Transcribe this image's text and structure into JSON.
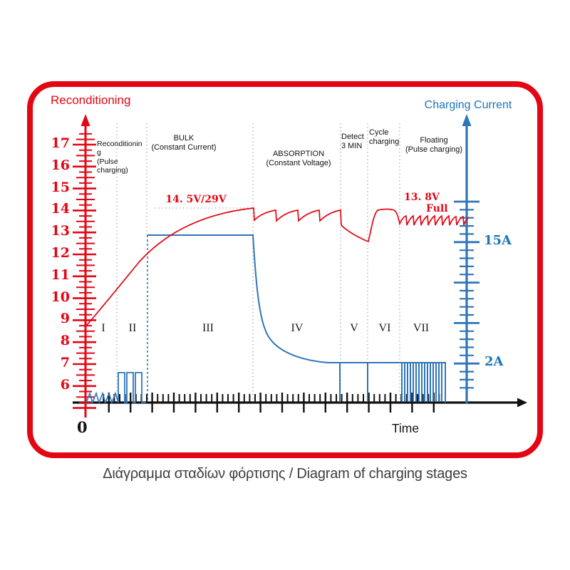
{
  "header": {
    "left_axis_title": "Reconditioning",
    "right_axis_title": "Charging Current"
  },
  "voltage_axis": {
    "ticks": [
      "17",
      "16",
      "15",
      "14",
      "13",
      "12",
      "11",
      "10",
      "9",
      "8",
      "7",
      "6"
    ]
  },
  "current_axis": {
    "high_label": "15A",
    "low_label": "2A"
  },
  "x_axis": {
    "origin": "0",
    "label": "Time"
  },
  "stage_numerals": [
    "I",
    "II",
    "III",
    "IV",
    "V",
    "VI",
    "VII"
  ],
  "stage_labels": {
    "reconditioning": "Reconditionin\ng\n(Pulse\ncharging)",
    "bulk": "BULK\n(Constant Current)",
    "absorption": "ABSORPTION\n(Constant Voltage)",
    "detect": "Detect\n3 MIN",
    "cycle": "Cycle\ncharging",
    "floating": "Floating\n(Pulse charging)"
  },
  "annotations": {
    "bulk_voltage": "14. 5V/29V",
    "float_voltage": "13. 8V",
    "full_label": "Full"
  },
  "caption": "Διάγραμμα σταδίων φόρτισης / Diagram of charging stages",
  "colors": {
    "red": "#e30613",
    "blue": "#2e75b9",
    "gray_dotted": "#bdbdbd",
    "text_dark": "#1a1a1a"
  },
  "chart_data": {
    "type": "line",
    "title": "Diagram of charging stages",
    "xlabel": "Time",
    "legend_position": "none",
    "grid": false,
    "voltage_axis_ticks": [
      17,
      16,
      15,
      14,
      13,
      12,
      11,
      10,
      9,
      8,
      7,
      6
    ],
    "current_axis_labels": [
      "15A",
      "2A"
    ],
    "stages": [
      {
        "numeral": "I",
        "name": "Reconditioning (Pulse charging)",
        "voltage": "rising from ~8.8V",
        "current": "small sawtooth pulses near 0"
      },
      {
        "numeral": "II",
        "name": "Reconditioning (Pulse charging)",
        "voltage": "rising",
        "current": "square pulses ~2A"
      },
      {
        "numeral": "III",
        "name": "BULK (Constant Current)",
        "voltage": "rises to 14.5V/29V",
        "current": "constant 15A"
      },
      {
        "numeral": "IV",
        "name": "ABSORPTION (Constant Voltage)",
        "voltage": "held ~14V with ripple",
        "current": "decays from 15A to 2A"
      },
      {
        "numeral": "V",
        "name": "Detect 3 MIN",
        "voltage": "dips to ~12.5V",
        "current": "2A"
      },
      {
        "numeral": "VI",
        "name": "Cycle charging",
        "voltage": "returns to ~14V",
        "current": "2A"
      },
      {
        "numeral": "VII",
        "name": "Floating (Pulse charging)",
        "voltage": "13.8V ripple (Full)",
        "current": "2A pulse comb"
      }
    ],
    "series": [
      {
        "name": "Battery voltage",
        "color": "#e30613",
        "key_levels": {
          "bulk_peak": "14. 5V/29V",
          "floating": "13. 8V",
          "status": "Full"
        }
      },
      {
        "name": "Charging current",
        "color": "#2e75b9",
        "key_levels": {
          "bulk": "15A",
          "floating": "2A"
        }
      }
    ]
  }
}
